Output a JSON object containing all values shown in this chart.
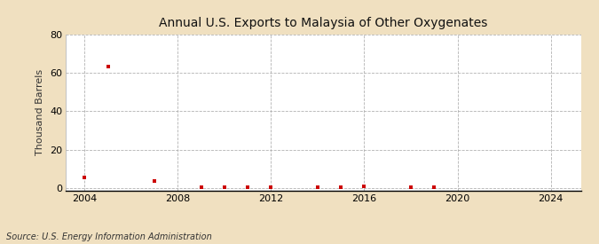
{
  "title": "Annual U.S. Exports to Malaysia of Other Oxygenates",
  "ylabel": "Thousand Barrels",
  "source": "Source: U.S. Energy Information Administration",
  "fig_background_color": "#f0e0c0",
  "plot_background_color": "#ffffff",
  "grid_color": "#aaaaaa",
  "marker_color": "#cc0000",
  "xlim": [
    2003.2,
    2025.3
  ],
  "ylim": [
    -1,
    80
  ],
  "yticks": [
    0,
    20,
    40,
    60,
    80
  ],
  "xticks": [
    2004,
    2008,
    2012,
    2016,
    2020,
    2024
  ],
  "data_x": [
    2004,
    2005,
    2007,
    2009,
    2010,
    2011,
    2012,
    2014,
    2015,
    2016,
    2018,
    2019
  ],
  "data_y": [
    5.5,
    63,
    4.0,
    0.5,
    0.5,
    0.5,
    0.5,
    0.5,
    0.5,
    1.2,
    0.5,
    0.5
  ]
}
